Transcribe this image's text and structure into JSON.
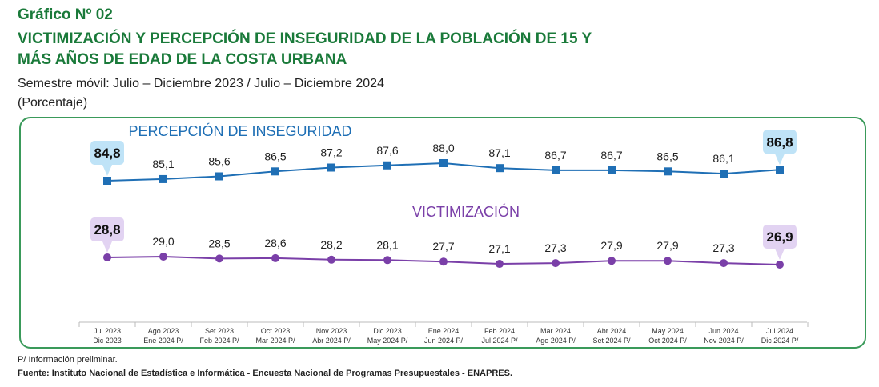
{
  "header": {
    "graph_number": "Gráfico Nº 02",
    "title_line1": "VICTIMIZACIÓN Y PERCEPCIÓN DE INSEGURIDAD DE LA POBLACIÓN DE 15 Y",
    "title_line2": "MÁS AÑOS DE EDAD DE LA COSTA URBANA",
    "subtitle": "Semestre móvil: Julio – Diciembre 2023 / Julio – Diciembre 2024",
    "unit": "(Porcentaje)"
  },
  "footer": {
    "footnote": "P/ Información preliminar.",
    "source": "Fuente: Instituto Nacional de Estadística e Informática - Encuesta Nacional de Programas Presupuestales - ENAPRES."
  },
  "colors": {
    "title": "#1a7a3a",
    "percepcion": "#1f6fb5",
    "victimizacion": "#7a3fa8",
    "callout_blue": "#bfe3f7",
    "callout_purple": "#e2d3f2",
    "frame": "#3a9a5a"
  },
  "chart_data": {
    "type": "line",
    "x": [
      [
        "Jul 2023",
        "Dic 2023"
      ],
      [
        "Ago 2023",
        "Ene 2024 P/"
      ],
      [
        "Set 2023",
        "Feb 2024 P/"
      ],
      [
        "Oct 2023",
        "Mar 2024 P/"
      ],
      [
        "Nov 2023",
        "Abr 2024 P/"
      ],
      [
        "Dic 2023",
        "May 2024 P/"
      ],
      [
        "Ene 2024",
        "Jun 2024 P/"
      ],
      [
        "Feb 2024",
        "Jul 2024 P/"
      ],
      [
        "Mar 2024",
        "Ago 2024 P/"
      ],
      [
        "Abr 2024",
        "Set 2024 P/"
      ],
      [
        "May 2024",
        "Oct 2024 P/"
      ],
      [
        "Jun 2024",
        "Nov 2024 P/"
      ],
      [
        "Jul 2024",
        "Dic 2024 P/"
      ]
    ],
    "series": [
      {
        "name": "PERCEPCIÓN DE INSEGURIDAD",
        "values": [
          84.8,
          85.1,
          85.6,
          86.5,
          87.2,
          87.6,
          88.0,
          87.1,
          86.7,
          86.7,
          86.5,
          86.1,
          86.8
        ],
        "labels": [
          "84,8",
          "85,1",
          "85,6",
          "86,5",
          "87,2",
          "87,6",
          "88,0",
          "87,1",
          "86,7",
          "86,7",
          "86,5",
          "86,1",
          "86,8"
        ],
        "marker": "square"
      },
      {
        "name": "VICTIMIZACIÓN",
        "values": [
          28.8,
          29.0,
          28.5,
          28.6,
          28.2,
          28.1,
          27.7,
          27.1,
          27.3,
          27.9,
          27.9,
          27.3,
          26.9
        ],
        "labels": [
          "28,8",
          "29,0",
          "28,5",
          "28,6",
          "28,2",
          "28,1",
          "27,7",
          "27,1",
          "27,3",
          "27,9",
          "27,9",
          "27,3",
          "26,9"
        ],
        "marker": "circle"
      }
    ],
    "grid": false,
    "legend": "inline series names above each line"
  }
}
